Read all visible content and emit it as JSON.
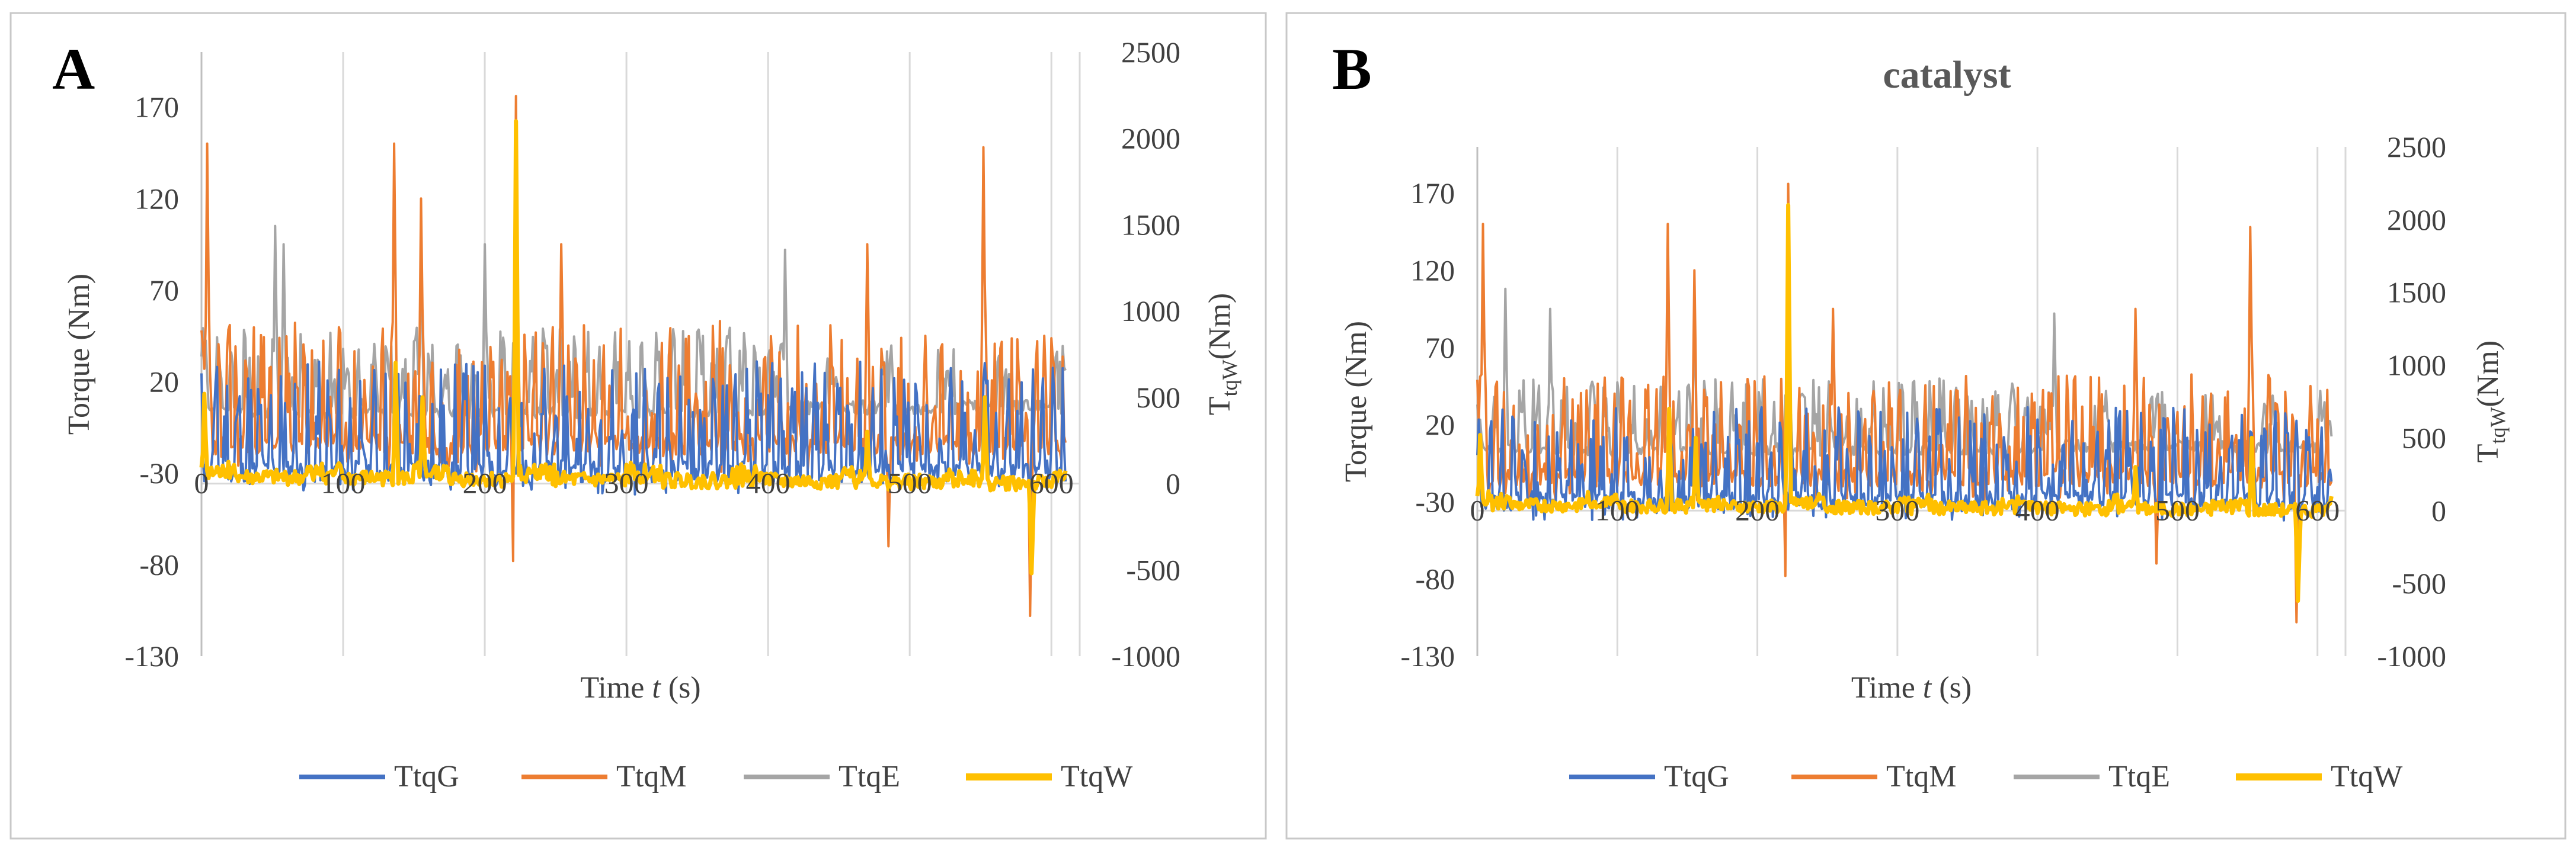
{
  "chart_data": [
    {
      "type": "line",
      "panel_letter": "A",
      "title": "",
      "xlabel_prefix": "Time",
      "xlabel_var": "t",
      "xlabel_unit": "(s)",
      "ylabel": "Torque (Nm)",
      "y2label_main": "T",
      "y2label_sub": "tqW",
      "y2label_unit": "(Nm)",
      "xlim": [
        0,
        620
      ],
      "ylim": [
        -130,
        200
      ],
      "y2lim": [
        -1000,
        2500
      ],
      "xticks": [
        0,
        100,
        200,
        300,
        400,
        500,
        600
      ],
      "yticks": [
        -130,
        -80,
        -30,
        20,
        70,
        120,
        170
      ],
      "y2ticks": [
        -1000,
        -500,
        0,
        500,
        1000,
        1500,
        2000,
        2500
      ],
      "series": [
        {
          "name": "TtqG",
          "color": "#4472C4",
          "axis": "left",
          "seed": 11,
          "base": -20,
          "spread": 46,
          "period": 4,
          "spikes": [],
          "x": [],
          "y": []
        },
        {
          "name": "TtqM",
          "color": "#ED7D31",
          "axis": "left",
          "seed": 23,
          "base": -5,
          "spread": 52,
          "period": 3,
          "spikes": [
            [
              4,
              150
            ],
            [
              136,
              150
            ],
            [
              155,
              120
            ],
            [
              220,
              -78
            ],
            [
              222,
              176
            ],
            [
              254,
              95
            ],
            [
              470,
              95
            ],
            [
              485,
              -70
            ],
            [
              552,
              148
            ],
            [
              585,
              -108
            ],
            [
              595,
              45
            ]
          ],
          "x": [],
          "y": []
        },
        {
          "name": "TtqE",
          "color": "#A5A5A5",
          "axis": "left",
          "seed": 37,
          "base": 5,
          "spread": 45,
          "period": 5,
          "spikes": [
            [
              52,
              105
            ],
            [
              58,
              95
            ],
            [
              155,
              100
            ],
            [
              200,
              95
            ],
            [
              412,
              92
            ]
          ],
          "x": [],
          "y": []
        },
        {
          "name": "TtqW",
          "color": "#FFC000",
          "axis": "right",
          "seed": 41,
          "base": 40,
          "spread": 90,
          "period": 3,
          "spikes": [
            [
              2,
              520
            ],
            [
              137,
              700
            ],
            [
              156,
              500
            ],
            [
              222,
              2100
            ],
            [
              470,
              300
            ],
            [
              553,
              500
            ],
            [
              586,
              -520
            ]
          ],
          "x": [],
          "y": []
        }
      ]
    },
    {
      "type": "line",
      "panel_letter": "B",
      "title": "catalyst",
      "xlabel_prefix": "Time",
      "xlabel_var": "t",
      "xlabel_unit": "(s)",
      "ylabel": "Torque (Nm)",
      "y2label_main": "T",
      "y2label_sub": "tqW",
      "y2label_unit": "(Nm)",
      "xlim": [
        0,
        620
      ],
      "ylim": [
        -130,
        200
      ],
      "y2lim": [
        -1000,
        2500
      ],
      "xticks": [
        0,
        100,
        200,
        300,
        400,
        500,
        600
      ],
      "yticks": [
        -130,
        -80,
        -30,
        20,
        70,
        120,
        170
      ],
      "y2ticks": [
        -1000,
        -500,
        0,
        500,
        1000,
        1500,
        2000,
        2500
      ],
      "series": [
        {
          "name": "TtqG",
          "color": "#4472C4",
          "axis": "left",
          "seed": 13,
          "base": -20,
          "spread": 46,
          "period": 4,
          "spikes": [],
          "x": [],
          "y": []
        },
        {
          "name": "TtqM",
          "color": "#ED7D31",
          "axis": "left",
          "seed": 29,
          "base": -5,
          "spread": 52,
          "period": 3,
          "spikes": [
            [
              4,
              150
            ],
            [
              136,
              150
            ],
            [
              155,
              120
            ],
            [
              220,
              -78
            ],
            [
              222,
              176
            ],
            [
              254,
              95
            ],
            [
              470,
              95
            ],
            [
              485,
              -70
            ],
            [
              552,
              148
            ],
            [
              585,
              -108
            ],
            [
              595,
              45
            ]
          ],
          "x": [],
          "y": []
        },
        {
          "name": "TtqE",
          "color": "#A5A5A5",
          "axis": "left",
          "seed": 31,
          "base": 5,
          "spread": 45,
          "period": 5,
          "spikes": [
            [
              20,
              108
            ],
            [
              52,
              95
            ],
            [
              155,
              100
            ],
            [
              412,
              92
            ]
          ],
          "x": [],
          "y": []
        },
        {
          "name": "TtqW",
          "color": "#FFC000",
          "axis": "right",
          "seed": 43,
          "base": 40,
          "spread": 90,
          "period": 3,
          "spikes": [
            [
              2,
              520
            ],
            [
              137,
              700
            ],
            [
              156,
              500
            ],
            [
              222,
              2100
            ],
            [
              470,
              300
            ],
            [
              553,
              500
            ],
            [
              586,
              -620
            ]
          ],
          "x": [],
          "y": []
        }
      ]
    }
  ]
}
